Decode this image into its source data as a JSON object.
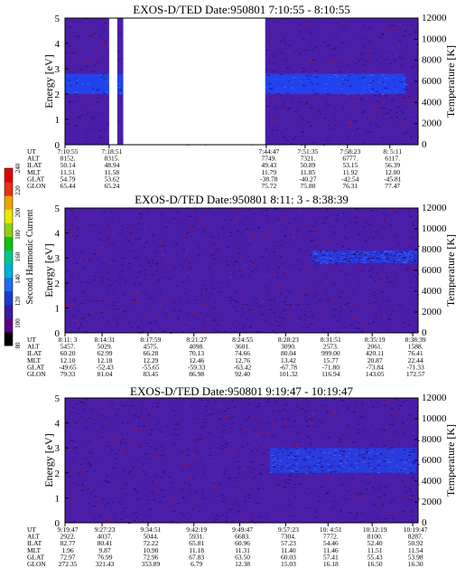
{
  "palette": {
    "background": "#4a1ea8",
    "speckle_dark": "#2a0a70",
    "speckle_red": "#b01030",
    "band": "#1f44f0",
    "band_light": "#3a6cff"
  },
  "colorbar": {
    "label": "Second Harmonic Current",
    "ticks": [
      "80",
      "100",
      "120",
      "140",
      "160",
      "180",
      "200",
      "220",
      "240"
    ],
    "colors": [
      "#000000",
      "#5a0080",
      "#3a1aa0",
      "#1c3bd0",
      "#1f6cf0",
      "#00b0d8",
      "#00c890",
      "#10c010",
      "#90d010",
      "#e8e800",
      "#f0a000",
      "#e83010",
      "#e00000"
    ]
  },
  "chart_data": [
    {
      "type": "heatmap",
      "title": "EXOS-D/TED   Date:950801  7:10:55 - 8:10:55",
      "ylabel": "Energy [eV]",
      "y2label": "Temperature [K]",
      "ylim": [
        0,
        5
      ],
      "y2lim": [
        0,
        12000
      ],
      "yticks": [
        "0",
        "1",
        "2",
        "3",
        "4",
        "5"
      ],
      "y2ticks": [
        "0",
        "2000",
        "4000",
        "6000",
        "8000",
        "10000",
        "12000"
      ],
      "band_energy_ev": [
        2.0,
        2.8
      ],
      "data_gaps_fraction": [
        [
          0.125,
          0.148
        ],
        [
          0.165,
          0.567
        ]
      ],
      "ephemeris": {
        "labels": [
          "UT",
          "ALT",
          "ILAT",
          "MLT",
          "GLAT",
          "GLON"
        ],
        "columns": [
          {
            "frac": 0.0,
            "vals": [
              "7:10:55",
              "8152.",
              "50.14",
              "11.51",
              "54.79",
              "65.44"
            ]
          },
          {
            "frac": 0.125,
            "vals": [
              "7:18:51",
              "8315.",
              "48.94",
              "11.58",
              "53.62",
              "65.24"
            ]
          },
          {
            "frac": 0.57,
            "vals": [
              "7:44:47",
              "7749.",
              "49.43",
              "11.79",
              "-38.78",
              "75.72"
            ]
          },
          {
            "frac": 0.68,
            "vals": [
              "7:51:35",
              "7321.",
              "50.89",
              "11.85",
              "-40.27",
              "75.80"
            ]
          },
          {
            "frac": 0.8,
            "vals": [
              "7:58:23",
              "6777.",
              "53.15",
              "11.92",
              "-42.54",
              "76.31"
            ]
          },
          {
            "frac": 0.92,
            "vals": [
              "8: 5:11",
              "6117.",
              "56.39",
              "12.00",
              "-45.81",
              "77.47"
            ]
          }
        ]
      }
    },
    {
      "type": "heatmap",
      "title": "EXOS-D/TED   Date:950801  8:11: 3 - 8:38:39",
      "ylabel": "Energy [eV]",
      "y2label": "Temperature [K]",
      "ylim": [
        0,
        5
      ],
      "y2lim": [
        0,
        12000
      ],
      "yticks": [
        "0",
        "1",
        "2",
        "3",
        "4",
        "5"
      ],
      "y2ticks": [
        "0",
        "2000",
        "4000",
        "6000",
        "8000",
        "10000",
        "12000"
      ],
      "band_energy_ev": [
        2.8,
        3.3
      ],
      "band_start_fraction": 0.7,
      "ephemeris": {
        "labels": [
          "UT",
          "ALT",
          "ILAT",
          "MLT",
          "GLAT",
          "GLON"
        ],
        "columns": [
          {
            "frac": 0.0,
            "vals": [
              "8:11: 3",
              "5457.",
              "60.20",
              "12.10",
              "-49.65",
              "79.33"
            ]
          },
          {
            "frac": 0.105,
            "vals": [
              "8:14:31",
              "5029.",
              "62.99",
              "12.18",
              "-52.43",
              "81.04"
            ]
          },
          {
            "frac": 0.235,
            "vals": [
              "8:17:59",
              "4575.",
              "66.28",
              "12.29",
              "-55.65",
              "83.45"
            ]
          },
          {
            "frac": 0.365,
            "vals": [
              "8:21:27",
              "4098.",
              "70.13",
              "12.46",
              "-59.33",
              "86.98"
            ]
          },
          {
            "frac": 0.495,
            "vals": [
              "8:24:55",
              "3601.",
              "74.66",
              "12.76",
              "-63.42",
              "92.40"
            ]
          },
          {
            "frac": 0.625,
            "vals": [
              "8:28:23",
              "3090.",
              "80.04",
              "13.42",
              "-67.78",
              "101.32"
            ]
          },
          {
            "frac": 0.745,
            "vals": [
              "8:31:51",
              "2573.",
              "999.00",
              "15.77",
              "-71.80",
              "116.94"
            ]
          },
          {
            "frac": 0.87,
            "vals": [
              "8:35:19",
              "2061.",
              "420.11",
              "20.87",
              "-73.84",
              "143.05"
            ]
          },
          {
            "frac": 0.985,
            "vals": [
              "8:38:39",
              "1588.",
              "76.41",
              "22.44",
              "-71.33",
              "172.57"
            ]
          }
        ]
      }
    },
    {
      "type": "heatmap",
      "title": "EXOS-D/TED   Date:950801  9:19:47 - 10:19:47",
      "ylabel": "Energy [eV]",
      "y2label": "Temperature [K]",
      "ylim": [
        0,
        5
      ],
      "y2lim": [
        0,
        12000
      ],
      "yticks": [
        "0",
        "1",
        "2",
        "3",
        "4",
        "5"
      ],
      "y2ticks": [
        "0",
        "2000",
        "4000",
        "6000",
        "8000",
        "10000",
        "12000"
      ],
      "band_energy_ev": [
        2.0,
        3.0
      ],
      "band_start_fraction": 0.58,
      "ephemeris": {
        "labels": [
          "UT",
          "ALT",
          "ILAT",
          "MLT",
          "GLAT",
          "GLON"
        ],
        "columns": [
          {
            "frac": 0.0,
            "vals": [
              "9:19:47",
              "2922.",
              "82.77",
              "1.96",
              "72.97",
              "272.35"
            ]
          },
          {
            "frac": 0.105,
            "vals": [
              "9:27:23",
              "4037.",
              "80.41",
              "9.87",
              "76.99",
              "321.43"
            ]
          },
          {
            "frac": 0.235,
            "vals": [
              "9:34:51",
              "5044.",
              "72.22",
              "10.90",
              "72.96",
              "353.89"
            ]
          },
          {
            "frac": 0.365,
            "vals": [
              "9:42:19",
              "5931.",
              "65.81",
              "11.18",
              "67.83",
              "6.79"
            ]
          },
          {
            "frac": 0.495,
            "vals": [
              "9:49:47",
              "6683.",
              "60.96",
              "11.31",
              "63.50",
              "12.38"
            ]
          },
          {
            "frac": 0.625,
            "vals": [
              "9:57:23",
              "7304.",
              "57.23",
              "11.40",
              "60.03",
              "15.03"
            ]
          },
          {
            "frac": 0.745,
            "vals": [
              "10: 4:51",
              "7772.",
              "54.46",
              "11.46",
              "57.41",
              "16.18"
            ]
          },
          {
            "frac": 0.87,
            "vals": [
              "10:12:19",
              "8100.",
              "52.40",
              "11.51",
              "55.43",
              "16.50"
            ]
          },
          {
            "frac": 0.985,
            "vals": [
              "10:19:47",
              "8287.",
              "50.92",
              "11.54",
              "53.98",
              "16.30"
            ]
          }
        ]
      }
    }
  ]
}
